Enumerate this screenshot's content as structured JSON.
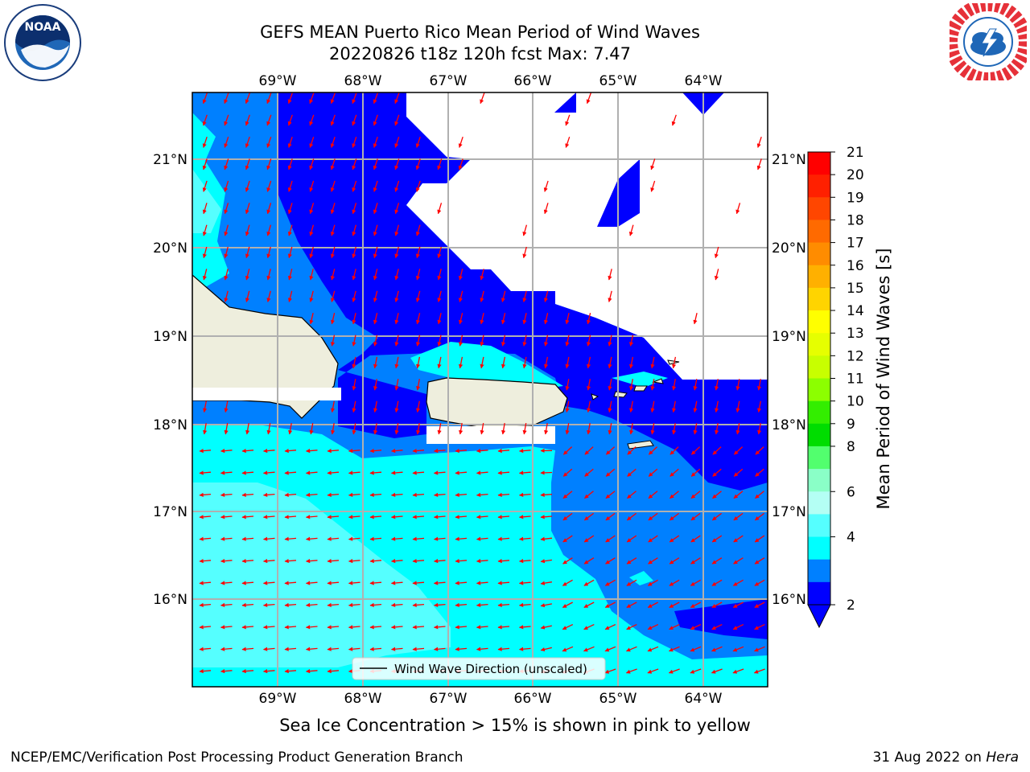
{
  "title": {
    "line1": "GEFS MEAN Puerto Rico Mean Period of Wind Waves",
    "line2": "20220826 t18z 120h fcst   Max: 7.47"
  },
  "map": {
    "lon_labels": [
      "69°W",
      "68°W",
      "67°W",
      "66°W",
      "65°W",
      "64°W"
    ],
    "lat_labels": [
      "21°N",
      "20°N",
      "19°N",
      "18°N",
      "17°N",
      "16°N"
    ],
    "legend_label": "Wind Wave Direction (unscaled)"
  },
  "colorbar": {
    "label": "Mean Period of Wind Waves [s]",
    "ticks": [
      "21",
      "20",
      "19",
      "18",
      "17",
      "16",
      "15",
      "14",
      "13",
      "12",
      "11",
      "10",
      "9",
      "8",
      "6",
      "4",
      "2"
    ],
    "colors": [
      "#ff0000",
      "#ff2000",
      "#ff4600",
      "#ff6a00",
      "#ff8c00",
      "#ffb000",
      "#ffd400",
      "#ffff00",
      "#e6ff00",
      "#c8ff00",
      "#8cff00",
      "#33ee00",
      "#00dd00",
      "#52ff6e",
      "#8affc7",
      "#b4fff4",
      "#55ffff",
      "#00ffff",
      "#0080ff",
      "#0000ff"
    ]
  },
  "logos": {
    "noaa_text": "NOAA",
    "noaa_ring": "NATIONAL OCEANIC AND ATMOSPHERIC ADMINISTRATION · U.S. DEPARTMENT OF COMMERCE",
    "nws_ring": "NATIONAL WEATHER SERVICE"
  },
  "note": "Sea Ice Concentration > 15% is shown in pink to yellow",
  "footer": {
    "left": "NCEP/EMC/Verification Post Processing Product Generation Branch",
    "right_date": "31 Aug 2022 on ",
    "right_host": "Hera"
  }
}
